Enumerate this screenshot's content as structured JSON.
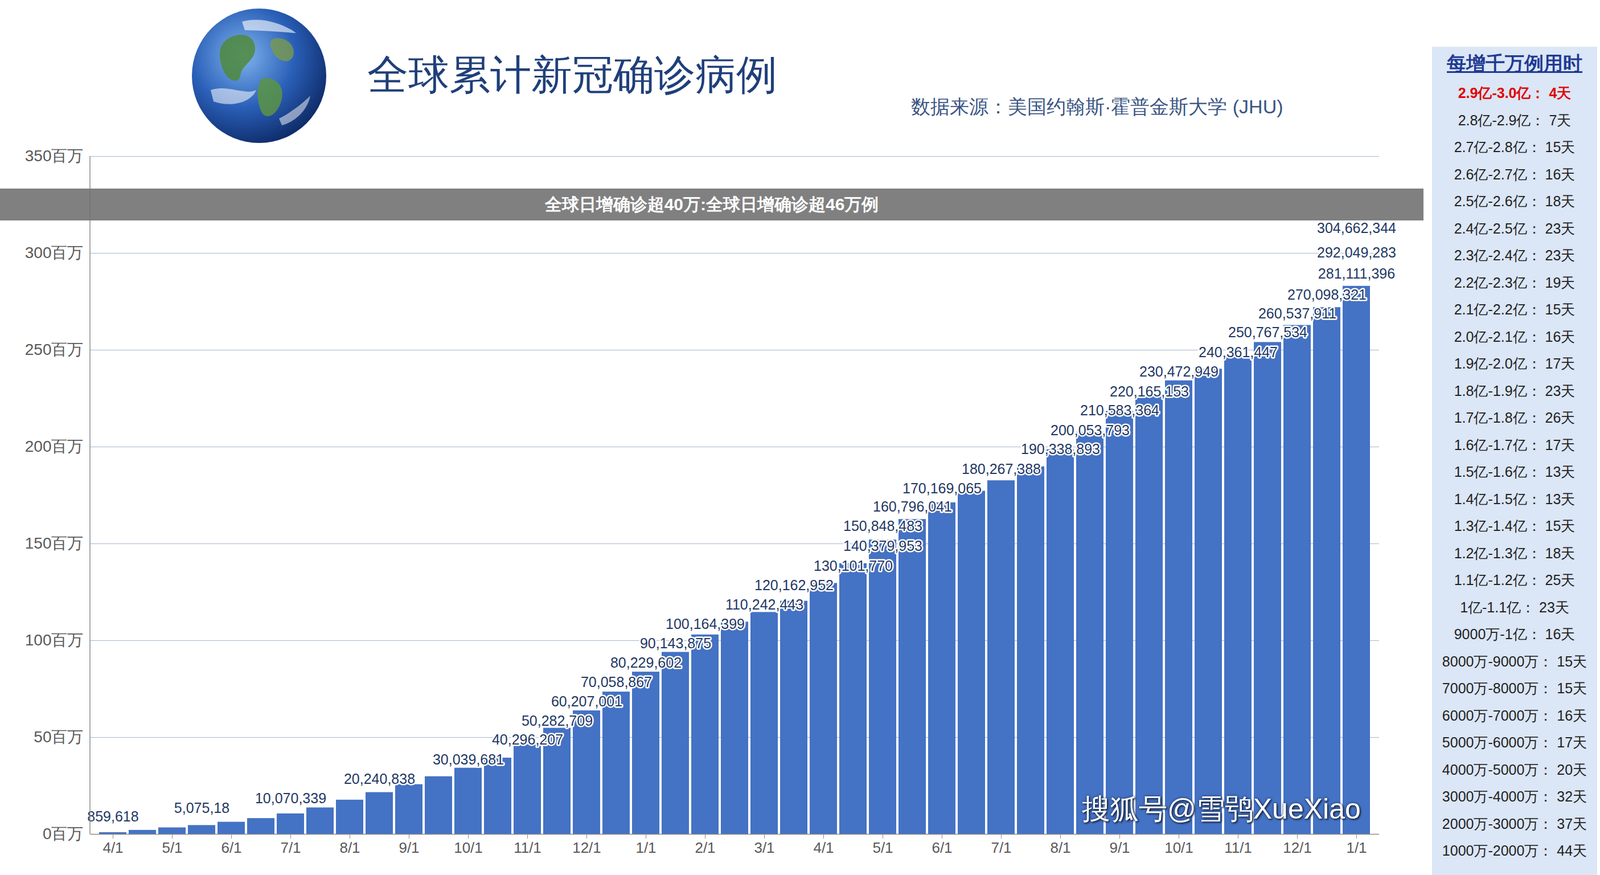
{
  "chart_data": {
    "type": "bar",
    "title": "全球累计新冠确诊病例",
    "subtitle": "数据来源：美国约翰斯·霍普金斯大学 (JHU)",
    "categories": [
      "4/1",
      null,
      "5/1",
      null,
      "6/1",
      null,
      "7/1",
      null,
      "8/1",
      null,
      "9/1",
      null,
      "10/1",
      null,
      "11/1",
      null,
      "12/1",
      null,
      "1/1",
      null,
      "2/1",
      null,
      "3/1",
      null,
      "4/1",
      null,
      "5/1",
      null,
      "6/1",
      null,
      "7/1",
      null,
      "8/1",
      null,
      "9/1",
      null,
      "10/1",
      null,
      "11/1",
      null,
      "12/1",
      null,
      "1/1"
    ],
    "values": [
      0.93,
      2.1,
      3.4,
      4.6,
      6.3,
      8.2,
      10.6,
      13.7,
      17.7,
      21.6,
      25.7,
      29.8,
      34.2,
      39.4,
      46.3,
      54.8,
      63.8,
      73.5,
      83.8,
      94.0,
      103.0,
      109.6,
      114.6,
      120.4,
      129.6,
      139.8,
      152.0,
      162.6,
      171.2,
      177.2,
      182.6,
      189.8,
      198.6,
      207.6,
      218.4,
      226.8,
      234.2,
      240.2,
      246.8,
      254.0,
      262.8,
      272.0,
      283.0
    ],
    "color": "#4472c4",
    "ylim": [
      0,
      350
    ],
    "yticks": [
      {
        "value": 0,
        "label": "0百万"
      },
      {
        "value": 50,
        "label": "50百万"
      },
      {
        "value": 100,
        "label": "100百万"
      },
      {
        "value": 150,
        "label": "150百万"
      },
      {
        "value": 200,
        "label": "200百万"
      },
      {
        "value": 250,
        "label": "250百万"
      },
      {
        "value": 300,
        "label": "300百万"
      },
      {
        "value": 350,
        "label": "350百万"
      }
    ],
    "grid": true,
    "annotations": [
      {
        "text": "859,618",
        "value": 0.859618,
        "index": 0
      },
      {
        "text": "5,075,18",
        "value": 5.07518,
        "index": 3
      },
      {
        "text": "10,070,339",
        "value": 10.070339,
        "index": 6
      },
      {
        "text": "20,240,838",
        "value": 20.240838,
        "index": 9
      },
      {
        "text": "30,039,681",
        "value": 30.039681,
        "index": 12
      },
      {
        "text": "40,296,207",
        "value": 40.296207,
        "index": 14
      },
      {
        "text": "50,282,709",
        "value": 50.282709,
        "index": 15
      },
      {
        "text": "60,207,001",
        "value": 60.207001,
        "index": 16
      },
      {
        "text": "70,058,867",
        "value": 70.058867,
        "index": 17
      },
      {
        "text": "80,229,602",
        "value": 80.229602,
        "index": 18
      },
      {
        "text": "90,143,875",
        "value": 90.143875,
        "index": 19
      },
      {
        "text": "100,164,399",
        "value": 100.164399,
        "index": 20
      },
      {
        "text": "110,242,443",
        "value": 110.242443,
        "index": 22
      },
      {
        "text": "120,162,952",
        "value": 120.162952,
        "index": 23
      },
      {
        "text": "130,101,770",
        "value": 130.10177,
        "index": 25
      },
      {
        "text": "140,379,953",
        "value": 140.379953,
        "index": 26
      },
      {
        "text": "150,848,483",
        "value": 150.848483,
        "index": 26
      },
      {
        "text": "160,796,041",
        "value": 160.796041,
        "index": 27
      },
      {
        "text": "170,169,065",
        "value": 170.169065,
        "index": 28
      },
      {
        "text": "180,267,388",
        "value": 180.267388,
        "index": 30
      },
      {
        "text": "190,338,893",
        "value": 190.338893,
        "index": 32
      },
      {
        "text": "200,053,793",
        "value": 200.053793,
        "index": 33
      },
      {
        "text": "210,583,364",
        "value": 210.583364,
        "index": 34
      },
      {
        "text": "220,165,153",
        "value": 220.165153,
        "index": 35
      },
      {
        "text": "230,472,949",
        "value": 230.472949,
        "index": 36
      },
      {
        "text": "240,361,447",
        "value": 240.361447,
        "index": 38
      },
      {
        "text": "250,767,534",
        "value": 250.767534,
        "index": 39
      },
      {
        "text": "260,537,911",
        "value": 260.537911,
        "index": 40
      },
      {
        "text": "270,098,321",
        "value": 270.098321,
        "index": 41
      },
      {
        "text": "281,111,396",
        "value": 281.111396,
        "index": 42
      },
      {
        "text": "292,049,283",
        "value": 292.049283,
        "index": 42
      },
      {
        "text": "304,662,344",
        "value": 304.662344,
        "index": 42
      }
    ],
    "banner": "全球日增确诊超40万:全球日增确诊超46万例",
    "watermark": "搜狐号@雪鸮XueXiao",
    "side_table": {
      "title": "每增千万例用时",
      "rows": [
        "2.9亿-3.0亿： 4天",
        "2.8亿-2.9亿： 7天",
        "2.7亿-2.8亿： 15天",
        "2.6亿-2.7亿： 16天",
        "2.5亿-2.6亿： 18天",
        "2.4亿-2.5亿： 23天",
        "2.3亿-2.4亿： 23天",
        "2.2亿-2.3亿： 19天",
        "2.1亿-2.2亿： 15天",
        "2.0亿-2.1亿： 16天",
        "1.9亿-2.0亿： 17天",
        "1.8亿-1.9亿： 23天",
        "1.7亿-1.8亿： 26天",
        "1.6亿-1.7亿： 17天",
        "1.5亿-1.6亿： 13天",
        "1.4亿-1.5亿： 13天",
        "1.3亿-1.4亿： 15天",
        "1.2亿-1.3亿： 18天",
        "1.1亿-1.2亿： 25天",
        "1亿-1.1亿： 23天",
        "9000万-1亿： 16天",
        "8000万-9000万： 15天",
        "7000万-8000万： 15天",
        "6000万-7000万： 16天",
        "5000万-6000万： 17天",
        "4000万-5000万： 20天",
        "3000万-4000万： 32天",
        "2000万-3000万： 37天",
        "1000万-2000万： 44天"
      ]
    }
  }
}
